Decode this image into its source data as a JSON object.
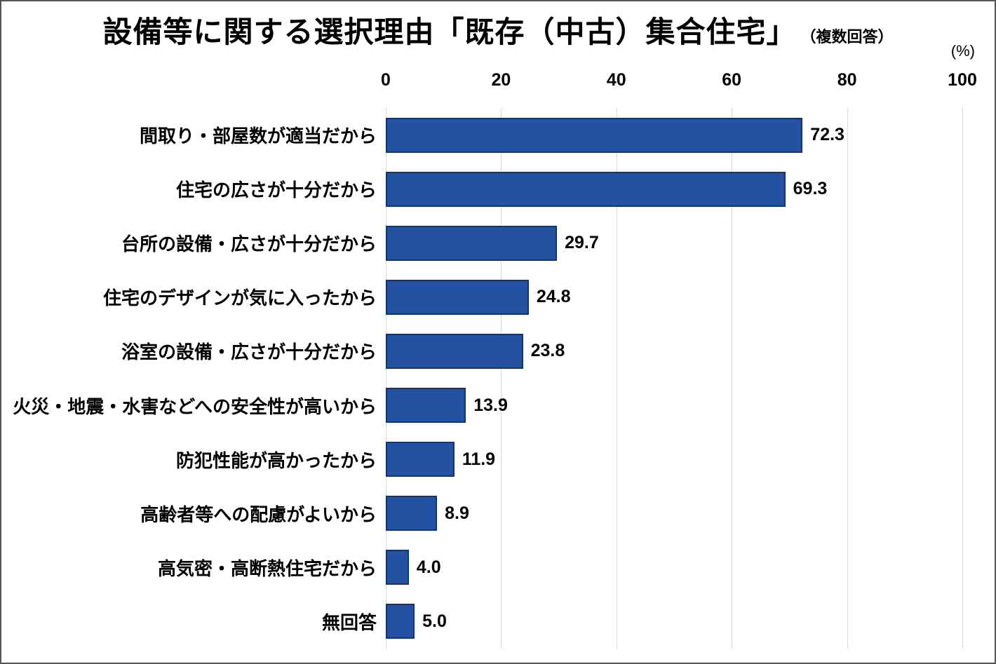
{
  "header": {
    "title": "設備等に関する選択理由「既存（中古）集合住宅」",
    "subtitle": "（複数回答）",
    "unit_label": "(%)"
  },
  "colors": {
    "bar_fill": "#2352A2",
    "bar_border": "#16336E",
    "gridline": "#D9D9D9",
    "text": "#000000"
  },
  "chart_data": {
    "type": "bar",
    "orientation": "horizontal",
    "title": "設備等に関する選択理由「既存（中古）集合住宅」",
    "subtitle": "（複数回答）",
    "unit": "(%)",
    "xlim": [
      0,
      100
    ],
    "x_ticks": [
      0,
      20,
      40,
      60,
      80,
      100
    ],
    "grid": true,
    "legend": false,
    "categories": [
      "間取り・部屋数が適当だから",
      "住宅の広さが十分だから",
      "台所の設備・広さが十分だから",
      "住宅のデザインが気に入ったから",
      "浴室の設備・広さが十分だから",
      "火災・地震・水害などへの安全性が高いから",
      "防犯性能が高かったから",
      "高齢者等への配慮がよいから",
      "高気密・高断熱住宅だから",
      "無回答"
    ],
    "values": [
      72.3,
      69.3,
      29.7,
      24.8,
      23.8,
      13.9,
      11.9,
      8.9,
      4.0,
      5.0
    ],
    "value_labels": [
      "72.3",
      "69.3",
      "29.7",
      "24.8",
      "23.8",
      "13.9",
      "11.9",
      "8.9",
      "4.0",
      "5.0"
    ]
  }
}
